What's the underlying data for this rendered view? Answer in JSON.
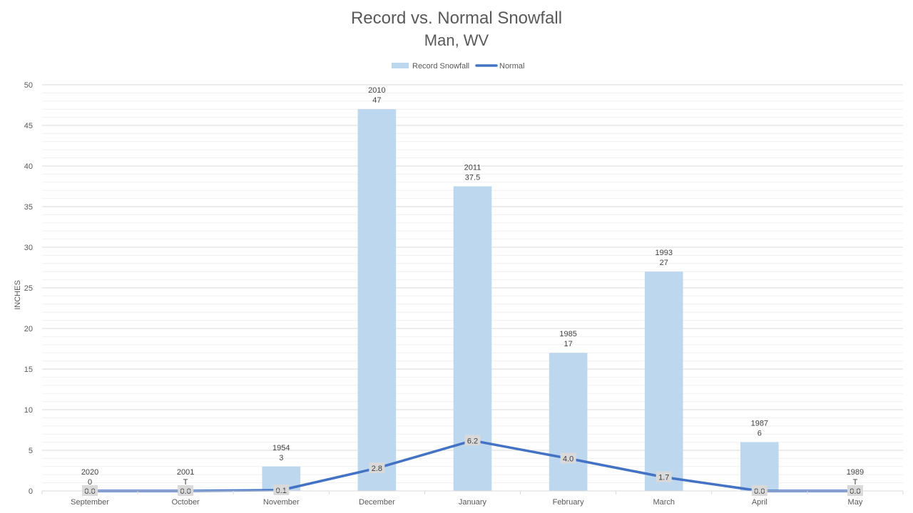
{
  "chart_data": {
    "type": "bar",
    "title": "Record vs. Normal Snowfall",
    "subtitle": "Man, WV",
    "ylabel": "INCHES",
    "xlabel": "",
    "ylim": [
      0,
      50
    ],
    "y_ticks": [
      0,
      5,
      10,
      15,
      20,
      25,
      30,
      35,
      40,
      45,
      50
    ],
    "minor_gridlines": true,
    "legend_position": "top-center",
    "categories": [
      "September",
      "October",
      "November",
      "December",
      "January",
      "February",
      "March",
      "April",
      "May"
    ],
    "series": [
      {
        "name": "Record Snowfall",
        "type": "bar",
        "color": "#BDD7EE",
        "values": [
          0,
          0,
          3,
          47,
          37.5,
          17,
          27,
          6,
          0
        ],
        "value_labels": [
          "0",
          "T",
          "3",
          "47",
          "37.5",
          "17",
          "27",
          "6",
          "T"
        ],
        "years": [
          "2020",
          "2001",
          "1954",
          "2010",
          "2011",
          "1985",
          "1993",
          "1987",
          "1989"
        ]
      },
      {
        "name": "Normal",
        "type": "line",
        "color": "#4472C4",
        "values": [
          0.0,
          0.0,
          0.1,
          2.8,
          6.2,
          4.0,
          1.7,
          0.0,
          0.0
        ],
        "value_labels": [
          "0.0",
          "0.0",
          "0.1",
          "2.8",
          "6.2",
          "4.0",
          "1.7",
          "0.0",
          "0.0"
        ]
      }
    ]
  }
}
